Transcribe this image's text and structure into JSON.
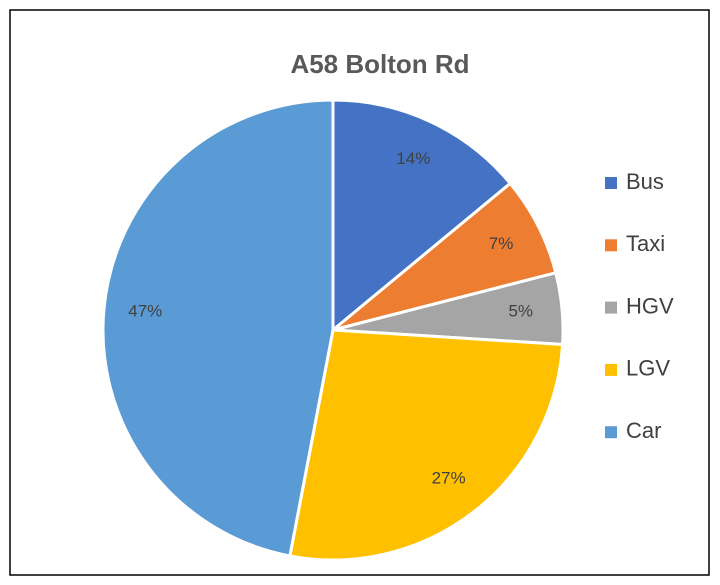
{
  "chart_data": {
    "type": "pie",
    "title": "A58 Bolton Rd",
    "categories": [
      "Bus",
      "Taxi",
      "HGV",
      "LGV",
      "Car"
    ],
    "values": [
      14,
      7,
      5,
      27,
      47
    ],
    "value_labels": [
      "14%",
      "7%",
      "5%",
      "27%",
      "47%"
    ],
    "colors": [
      "#4472c4",
      "#ed7d31",
      "#a5a5a5",
      "#ffc000",
      "#5b9bd5"
    ],
    "legend": "right"
  }
}
